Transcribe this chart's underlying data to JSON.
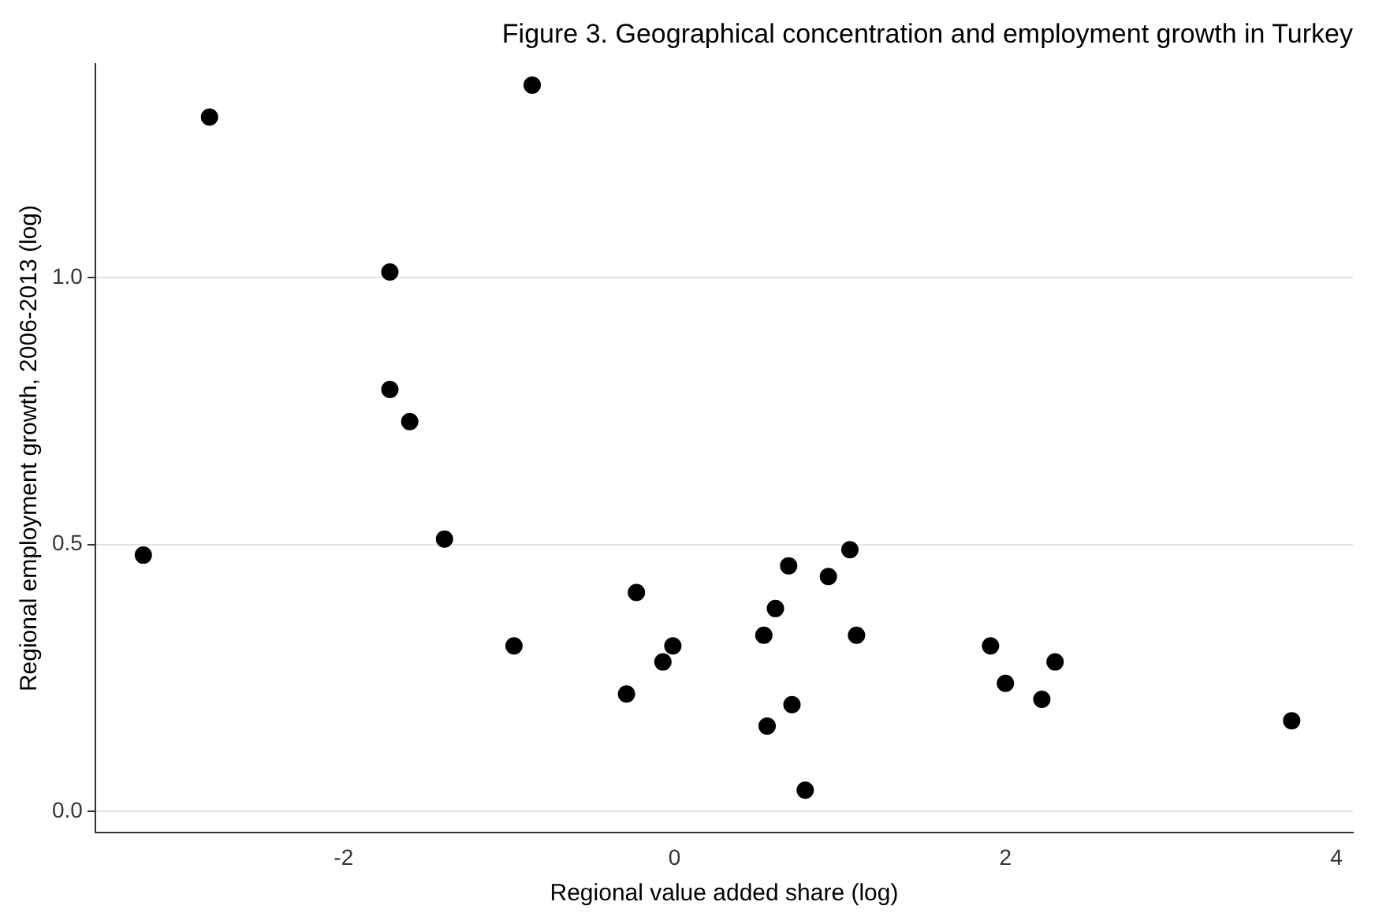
{
  "chart_data": {
    "type": "scatter",
    "title": "Figure 3. Geographical concentration and employment growth in Turkey",
    "xlabel": "Regional value added share (log)",
    "ylabel": "Regional employment growth, 2006-2013 (log)",
    "x": [
      -3.21,
      -2.81,
      -0.86,
      -1.72,
      -1.72,
      -1.6,
      -1.39,
      -0.97,
      -0.23,
      -0.29,
      -0.07,
      -0.01,
      0.54,
      0.61,
      0.69,
      0.56,
      0.71,
      0.79,
      0.93,
      1.06,
      1.1,
      1.91,
      2.0,
      2.22,
      2.3,
      3.73
    ],
    "series": [
      {
        "color": "#000000",
        "values": [
          0.48,
          1.3,
          1.36,
          1.01,
          0.79,
          0.73,
          0.51,
          0.31,
          0.41,
          0.22,
          0.28,
          0.31,
          0.33,
          0.38,
          0.46,
          0.16,
          0.2,
          0.04,
          0.44,
          0.49,
          0.33,
          0.31,
          0.24,
          0.21,
          0.28,
          0.17
        ]
      }
    ],
    "xlim": [
      -3.5,
      4.1
    ],
    "xticks": [
      -2,
      0,
      2,
      4
    ],
    "ylim": [
      -0.04,
      1.4
    ],
    "yticks": [
      {
        "value": 0,
        "label": "0.0"
      },
      0.5,
      {
        "value": 1,
        "label": "1.0"
      }
    ],
    "grid": "y",
    "marker": "circle",
    "legend": false
  }
}
